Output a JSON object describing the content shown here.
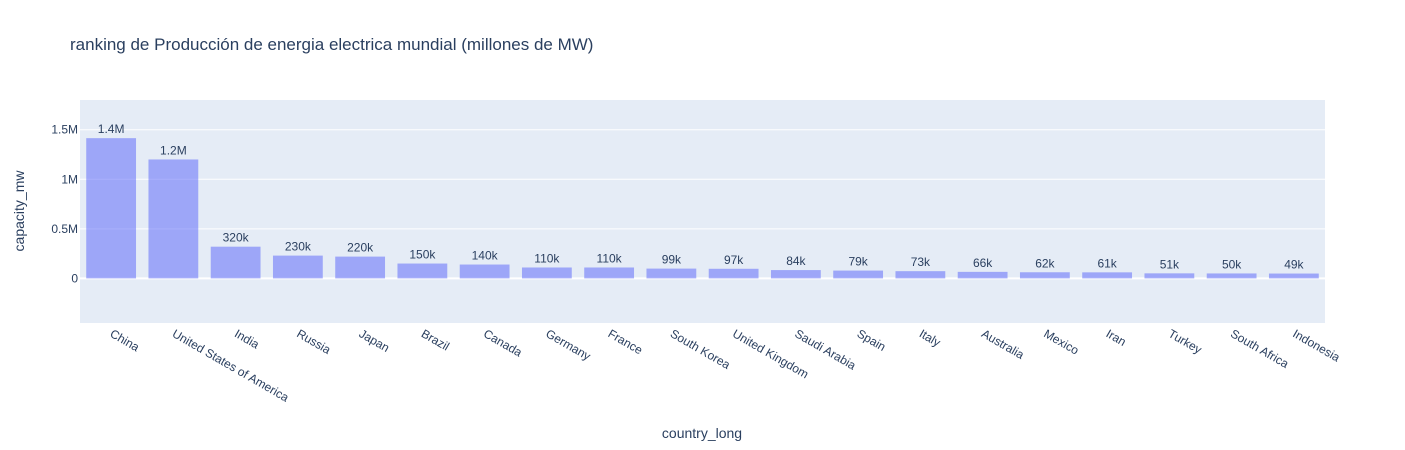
{
  "chart_data": {
    "type": "bar",
    "title": "ranking de Producción de energia electrica mundial (millones de MW)",
    "xlabel": "country_long",
    "ylabel": "capacity_mw",
    "ylim": [
      -450000,
      1800000
    ],
    "yticks": [
      {
        "value": 0,
        "label": "0"
      },
      {
        "value": 500000,
        "label": "0.5M"
      },
      {
        "value": 1000000,
        "label": "1M"
      },
      {
        "value": 1500000,
        "label": "1.5M"
      }
    ],
    "grid": true,
    "legend": false,
    "categories": [
      "China",
      "United States of America",
      "India",
      "Russia",
      "Japan",
      "Brazil",
      "Canada",
      "Germany",
      "France",
      "South Korea",
      "United Kingdom",
      "Saudi Arabia",
      "Spain",
      "Italy",
      "Australia",
      "Mexico",
      "Iran",
      "Turkey",
      "South Africa",
      "Indonesia"
    ],
    "values": [
      1415000,
      1200000,
      320000,
      230000,
      220000,
      150000,
      140000,
      110000,
      110000,
      99000,
      97000,
      84000,
      79000,
      73000,
      66000,
      62000,
      61000,
      51000,
      50000,
      49000
    ],
    "data_labels": [
      "1.4M",
      "1.2M",
      "320k",
      "230k",
      "220k",
      "150k",
      "140k",
      "110k",
      "110k",
      "99k",
      "97k",
      "84k",
      "79k",
      "73k",
      "66k",
      "62k",
      "61k",
      "51k",
      "50k",
      "49k"
    ],
    "colors": {
      "bar": "#636efa",
      "plot_bg": "#e5ecf6",
      "grid": "#ffffff",
      "text": "#2a3f5f",
      "title": "#2a3f5f"
    }
  }
}
